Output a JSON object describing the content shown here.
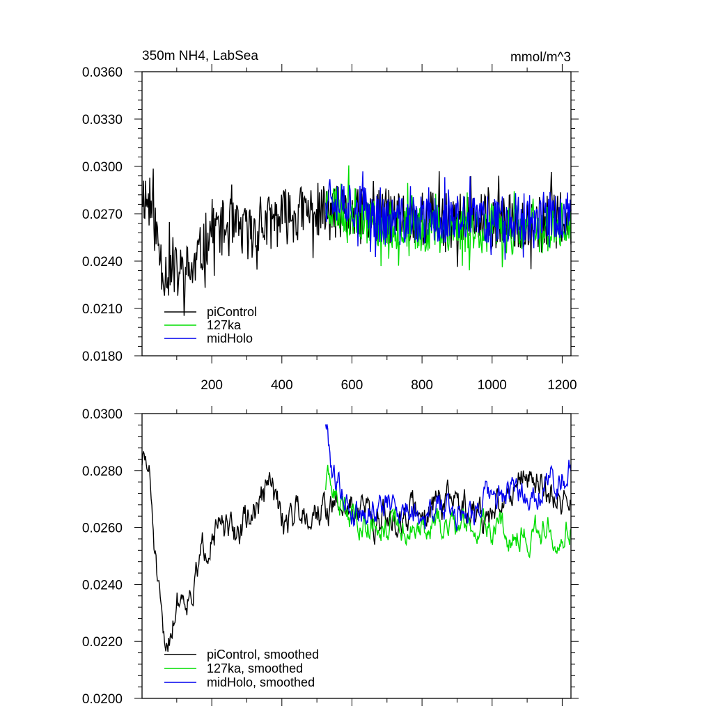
{
  "chart_data": [
    {
      "type": "line",
      "title": "350m NH4, LabSea",
      "units": "mmol/m^3",
      "xlabel": "",
      "ylabel": "",
      "xlim": [
        1,
        1225
      ],
      "ylim": [
        0.018,
        0.036
      ],
      "x_ticks": [
        200,
        400,
        600,
        800,
        1000,
        1200
      ],
      "x_tick_labels": [
        "200",
        "400",
        "600",
        "800",
        "1000",
        "1200"
      ],
      "y_ticks": [
        0.018,
        0.021,
        0.024,
        0.027,
        0.03,
        0.033,
        0.036
      ],
      "y_tick_labels": [
        "0.0180",
        "0.0210",
        "0.0240",
        "0.0270",
        "0.0300",
        "0.0330",
        "0.0360"
      ],
      "legend_position": "bottom-left",
      "series": [
        {
          "name": "piControl",
          "color": "#000000",
          "x_start": 1,
          "x_end": 1225,
          "mean": 0.0262,
          "noise": 0.0018,
          "seed": 11,
          "anchors": [
            [
              1,
              0.0285
            ],
            [
              30,
              0.0272
            ],
            [
              60,
              0.0235
            ],
            [
              100,
              0.0232
            ],
            [
              150,
              0.0235
            ],
            [
              200,
              0.0262
            ],
            [
              300,
              0.0258
            ],
            [
              400,
              0.0268
            ],
            [
              500,
              0.0272
            ],
            [
              600,
              0.0268
            ],
            [
              800,
              0.0268
            ],
            [
              1000,
              0.0264
            ],
            [
              1225,
              0.0266
            ]
          ]
        },
        {
          "name": "127ka",
          "color": "#00dd00",
          "x_start": 525,
          "x_end": 1225,
          "mean": 0.0262,
          "noise": 0.0016,
          "seed": 23,
          "anchors": [
            [
              525,
              0.0278
            ],
            [
              700,
              0.0262
            ],
            [
              900,
              0.0261
            ],
            [
              1100,
              0.026
            ],
            [
              1225,
              0.0262
            ]
          ]
        },
        {
          "name": "midHolo",
          "color": "#0000ee",
          "x_start": 525,
          "x_end": 1225,
          "mean": 0.0265,
          "noise": 0.0016,
          "seed": 37,
          "anchors": [
            [
              525,
              0.0285
            ],
            [
              700,
              0.0265
            ],
            [
              900,
              0.0266
            ],
            [
              1100,
              0.0268
            ],
            [
              1225,
              0.0268
            ]
          ]
        }
      ]
    },
    {
      "type": "line",
      "title": "",
      "xlabel": "",
      "ylabel": "",
      "xlim": [
        1,
        1225
      ],
      "ylim": [
        0.02,
        0.03
      ],
      "x_ticks": [
        200,
        400,
        600,
        800,
        1000,
        1200
      ],
      "x_tick_labels": [],
      "y_ticks": [
        0.02,
        0.022,
        0.024,
        0.026,
        0.028,
        0.03
      ],
      "y_tick_labels": [
        "0.0200",
        "0.0220",
        "0.0240",
        "0.0260",
        "0.0280",
        "0.0300"
      ],
      "legend_position": "bottom-left",
      "series": [
        {
          "name": "piControl, smoothed",
          "color": "#000000",
          "x_start": 1,
          "x_end": 1225,
          "mean": 0.0262,
          "noise": 0.0008,
          "seed": 51,
          "anchors": [
            [
              1,
              0.0284
            ],
            [
              20,
              0.028
            ],
            [
              50,
              0.0232
            ],
            [
              65,
              0.0215
            ],
            [
              100,
              0.0235
            ],
            [
              150,
              0.024
            ],
            [
              200,
              0.0262
            ],
            [
              250,
              0.0256
            ],
            [
              300,
              0.0262
            ],
            [
              370,
              0.0275
            ],
            [
              400,
              0.0262
            ],
            [
              450,
              0.0268
            ],
            [
              520,
              0.0266
            ],
            [
              600,
              0.0268
            ],
            [
              700,
              0.0262
            ],
            [
              860,
              0.027
            ],
            [
              1000,
              0.0262
            ],
            [
              1080,
              0.028
            ],
            [
              1225,
              0.0268
            ]
          ]
        },
        {
          "name": "127ka, smoothed",
          "color": "#00dd00",
          "x_start": 525,
          "x_end": 1225,
          "mean": 0.0263,
          "noise": 0.0007,
          "seed": 63,
          "anchors": [
            [
              525,
              0.0275
            ],
            [
              600,
              0.0264
            ],
            [
              700,
              0.0262
            ],
            [
              800,
              0.0258
            ],
            [
              900,
              0.0262
            ],
            [
              1000,
              0.026
            ],
            [
              1100,
              0.0258
            ],
            [
              1225,
              0.0262
            ]
          ]
        },
        {
          "name": "midHolo, smoothed",
          "color": "#0000ee",
          "x_start": 525,
          "x_end": 1225,
          "mean": 0.0267,
          "noise": 0.0007,
          "seed": 79,
          "anchors": [
            [
              525,
              0.0298
            ],
            [
              545,
              0.028
            ],
            [
              600,
              0.0266
            ],
            [
              700,
              0.0268
            ],
            [
              800,
              0.0266
            ],
            [
              900,
              0.0266
            ],
            [
              1000,
              0.027
            ],
            [
              1100,
              0.0272
            ],
            [
              1200,
              0.0278
            ],
            [
              1225,
              0.0282
            ]
          ]
        }
      ]
    }
  ]
}
